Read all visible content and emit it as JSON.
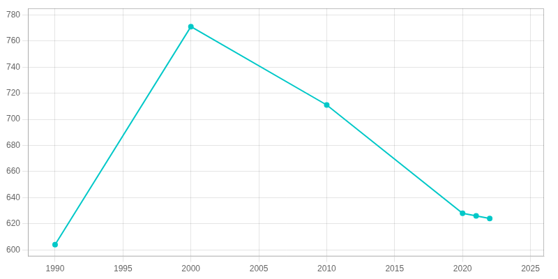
{
  "chart_data": {
    "type": "line",
    "x": [
      1990,
      2000,
      2010,
      2020,
      2021,
      2022
    ],
    "values": [
      604,
      771,
      711,
      628,
      626,
      624
    ],
    "color": "#00c8c8",
    "marker": "o",
    "xlim": [
      1988,
      2026
    ],
    "ylim": [
      595,
      785
    ],
    "xticks": [
      1990,
      1995,
      2000,
      2005,
      2010,
      2015,
      2020,
      2025
    ],
    "yticks": [
      600,
      620,
      640,
      660,
      680,
      700,
      720,
      740,
      760,
      780
    ],
    "grid": true
  }
}
